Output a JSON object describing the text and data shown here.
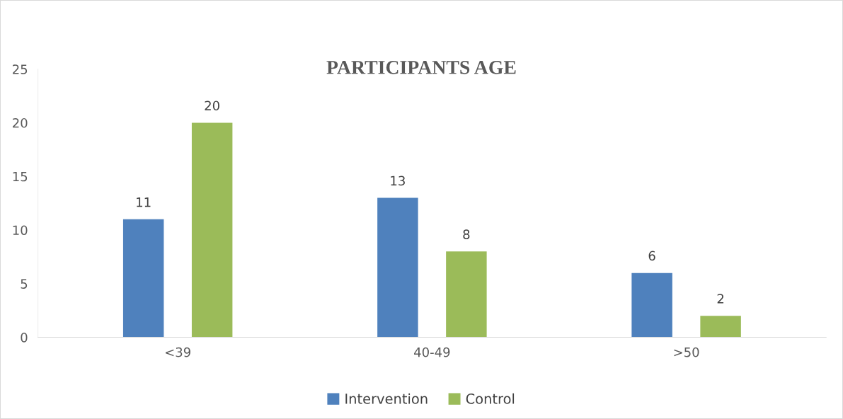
{
  "chart_data": {
    "type": "bar",
    "title": "PARTICIPANTS AGE",
    "categories": [
      "<39",
      "40-49",
      ">50"
    ],
    "series": [
      {
        "name": "Intervention",
        "color": "#4f81bd",
        "values": [
          11,
          13,
          6
        ]
      },
      {
        "name": "Control",
        "color": "#9bbb59",
        "values": [
          20,
          8,
          2
        ]
      }
    ],
    "ylim": [
      0,
      25
    ],
    "yticks": [
      0,
      5,
      10,
      15,
      20,
      25
    ],
    "grid": false,
    "legend": "bottom",
    "data_labels": true
  }
}
